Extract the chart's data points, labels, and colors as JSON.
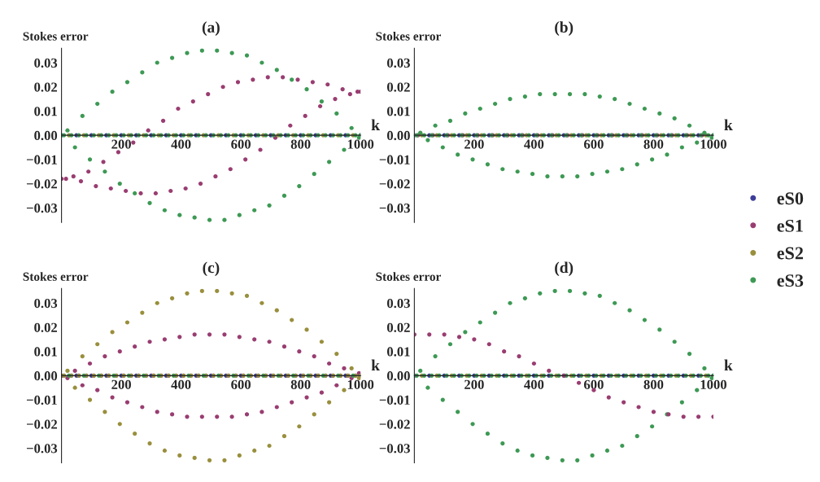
{
  "chart_data": [
    {
      "type": "scatter",
      "title": "(a)",
      "xlabel": "k",
      "ylabel": "Stokes error",
      "xlim": [
        0,
        1000
      ],
      "ylim": [
        -0.036,
        0.036
      ],
      "xticks": [
        200,
        400,
        600,
        800,
        1000
      ],
      "yticks": [
        {
          "value": -0.03,
          "label": "−0.03"
        },
        {
          "value": -0.02,
          "label": "−0.02"
        },
        {
          "value": -0.01,
          "label": "−0.01"
        },
        {
          "value": 0,
          "label": "0.00"
        },
        0.01,
        0.02,
        0.03
      ],
      "marker": "circle",
      "legend": "right",
      "series": [
        {
          "name": "eS0",
          "color": "#3d3d99",
          "x": [
            0,
            50,
            100,
            150,
            200,
            250,
            300,
            350,
            400,
            450,
            500,
            550,
            600,
            650,
            700,
            750,
            800,
            850,
            900,
            950,
            1000
          ],
          "values": [
            0,
            0,
            0,
            0,
            0,
            0,
            0,
            0,
            0,
            0,
            0,
            0,
            0,
            0,
            0,
            0,
            0,
            0,
            0,
            0,
            0
          ]
        },
        {
          "name": "eS1",
          "color": "#993d71",
          "x": [
            0,
            15,
            40,
            65,
            90,
            115,
            140,
            165,
            190,
            215,
            240,
            265,
            290,
            315,
            340,
            365,
            390,
            415,
            440,
            465,
            490,
            515,
            540,
            565,
            590,
            615,
            640,
            665,
            690,
            715,
            740,
            765,
            790,
            815,
            840,
            865,
            890,
            915,
            940,
            965,
            990,
            1000
          ],
          "values": [
            -0.018,
            -0.018,
            -0.017,
            -0.019,
            -0.015,
            -0.021,
            -0.011,
            -0.022,
            -0.007,
            -0.023,
            -0.003,
            -0.024,
            0.002,
            -0.024,
            0.006,
            -0.023,
            0.011,
            -0.022,
            0.014,
            -0.02,
            0.017,
            -0.017,
            0.02,
            -0.014,
            0.022,
            -0.01,
            0.023,
            -0.006,
            0.024,
            -0.001,
            0.024,
            0.004,
            0.023,
            0.008,
            0.022,
            0.012,
            0.021,
            0.015,
            0.019,
            0.017,
            0.018,
            0.018
          ]
        },
        {
          "name": "eS2",
          "color": "#998f3d",
          "x": [
            25,
            75,
            125,
            175,
            225,
            275,
            325,
            375,
            425,
            475,
            525,
            575,
            625,
            675,
            725,
            775,
            825,
            875,
            925,
            975
          ],
          "values": [
            0,
            0,
            0,
            0,
            0,
            0,
            0,
            0,
            0,
            0,
            0,
            0,
            0,
            0,
            0,
            0,
            0,
            0,
            0,
            0
          ]
        },
        {
          "name": "eS3",
          "color": "#3d9954",
          "x": [
            8,
            20,
            33,
            45,
            58,
            70,
            83,
            95,
            108,
            120,
            133,
            145,
            158,
            170,
            183,
            195,
            208,
            220,
            233,
            245,
            258,
            270,
            283,
            295,
            308,
            320,
            333,
            345,
            358,
            370,
            383,
            395,
            408,
            420,
            433,
            445,
            458,
            470,
            483,
            495,
            508,
            520,
            533,
            545,
            558,
            570,
            583,
            595,
            608,
            620,
            633,
            645,
            658,
            670,
            683,
            695,
            708,
            720,
            733,
            745,
            758,
            770,
            783,
            795,
            808,
            820,
            833,
            845,
            858,
            870,
            883,
            895,
            908,
            920,
            933,
            945,
            958,
            970,
            983,
            995,
            1000
          ],
          "values": [
            0,
            0.002,
            0,
            -0.005,
            0,
            0.008,
            0,
            -0.01,
            0,
            0.013,
            0,
            -0.015,
            0,
            0.018,
            0,
            -0.02,
            0,
            0.022,
            0,
            -0.024,
            0,
            0.026,
            0,
            -0.028,
            0,
            0.03,
            0,
            -0.031,
            0,
            0.032,
            0,
            -0.033,
            0,
            0.034,
            0,
            -0.034,
            0,
            0.035,
            0,
            -0.035,
            0,
            0.035,
            0,
            -0.035,
            0,
            0.034,
            0,
            -0.033,
            0,
            0.033,
            0,
            -0.031,
            0,
            0.03,
            0,
            -0.029,
            0,
            0.027,
            0,
            -0.025,
            0,
            0.023,
            0,
            -0.021,
            0,
            0.019,
            0,
            -0.016,
            0,
            0.014,
            0,
            -0.011,
            0,
            0.009,
            0,
            -0.006,
            0,
            0.003,
            0,
            -0.001,
            0
          ]
        }
      ]
    },
    {
      "type": "scatter",
      "title": "(b)",
      "xlabel": "k",
      "ylabel": "Stokes error",
      "xlim": [
        0,
        1000
      ],
      "ylim": [
        -0.036,
        0.036
      ],
      "xticks": [
        200,
        400,
        600,
        800,
        1000
      ],
      "yticks": [
        {
          "value": -0.03,
          "label": "−0.03"
        },
        {
          "value": -0.02,
          "label": "−0.02"
        },
        {
          "value": -0.01,
          "label": "−0.01"
        },
        {
          "value": 0,
          "label": "0.00"
        },
        0.01,
        0.02,
        0.03
      ],
      "marker": "circle",
      "series": [
        {
          "color": "#3d3d99",
          "x": [
            0,
            50,
            100,
            150,
            200,
            250,
            300,
            350,
            400,
            450,
            500,
            550,
            600,
            650,
            700,
            750,
            800,
            850,
            900,
            950,
            1000
          ],
          "values": [
            0,
            0,
            0,
            0,
            0,
            0,
            0,
            0,
            0,
            0,
            0,
            0,
            0,
            0,
            0,
            0,
            0,
            0,
            0,
            0,
            0
          ]
        },
        {
          "color": "#993d71",
          "x": [
            12,
            62,
            112,
            162,
            212,
            262,
            312,
            362,
            412,
            462,
            512,
            562,
            612,
            662,
            712,
            762,
            812,
            862,
            912,
            962
          ],
          "values": [
            0,
            0,
            0,
            0,
            0,
            0,
            0,
            0,
            0,
            0,
            0,
            0,
            0,
            0,
            0,
            0,
            0,
            0,
            0,
            0
          ]
        },
        {
          "color": "#998f3d",
          "x": [
            25,
            75,
            125,
            175,
            225,
            275,
            325,
            375,
            425,
            475,
            525,
            575,
            625,
            675,
            725,
            775,
            825,
            875,
            925,
            975
          ],
          "values": [
            0,
            0,
            0,
            0,
            0,
            0,
            0,
            0,
            0,
            0,
            0,
            0,
            0,
            0,
            0,
            0,
            0,
            0,
            0,
            0
          ]
        },
        {
          "color": "#3d9954",
          "x": [
            8,
            20,
            33,
            45,
            58,
            70,
            83,
            95,
            108,
            120,
            133,
            145,
            158,
            170,
            183,
            195,
            208,
            220,
            233,
            245,
            258,
            270,
            283,
            295,
            308,
            320,
            333,
            345,
            358,
            370,
            383,
            395,
            408,
            420,
            433,
            445,
            458,
            470,
            483,
            495,
            508,
            520,
            533,
            545,
            558,
            570,
            583,
            595,
            608,
            620,
            633,
            645,
            658,
            670,
            683,
            695,
            708,
            720,
            733,
            745,
            758,
            770,
            783,
            795,
            808,
            820,
            833,
            845,
            858,
            870,
            883,
            895,
            908,
            920,
            933,
            945,
            958,
            970,
            983,
            995,
            1000
          ],
          "values": [
            0,
            0.001,
            0,
            -0.002,
            0,
            0.004,
            0,
            -0.005,
            0,
            0.006,
            0,
            -0.008,
            0,
            0.009,
            0,
            -0.01,
            0,
            0.011,
            0,
            -0.012,
            0,
            0.013,
            0,
            -0.014,
            0,
            0.015,
            0,
            -0.015,
            0,
            0.016,
            0,
            -0.016,
            0,
            0.017,
            0,
            -0.017,
            0,
            0.017,
            0,
            -0.017,
            0,
            0.017,
            0,
            -0.017,
            0,
            0.017,
            0,
            -0.016,
            0,
            0.016,
            0,
            -0.015,
            0,
            0.015,
            0,
            -0.014,
            0,
            0.013,
            0,
            -0.012,
            0,
            0.011,
            0,
            -0.01,
            0,
            0.009,
            0,
            -0.008,
            0,
            0.007,
            0,
            -0.005,
            0,
            0.004,
            0,
            -0.003,
            0,
            0.001,
            0,
            -0.001,
            0
          ]
        }
      ]
    },
    {
      "type": "scatter",
      "title": "(c)",
      "xlabel": "k",
      "ylabel": "Stokes error",
      "xlim": [
        0,
        1000
      ],
      "ylim": [
        -0.036,
        0.036
      ],
      "xticks": [
        200,
        400,
        600,
        800,
        1000
      ],
      "yticks": [
        {
          "value": -0.03,
          "label": "−0.03"
        },
        {
          "value": -0.02,
          "label": "−0.02"
        },
        {
          "value": -0.01,
          "label": "−0.01"
        },
        {
          "value": 0,
          "label": "0.00"
        },
        0.01,
        0.02,
        0.03
      ],
      "marker": "circle",
      "series": [
        {
          "color": "#3d3d99",
          "x": [
            0,
            50,
            100,
            150,
            200,
            250,
            300,
            350,
            400,
            450,
            500,
            550,
            600,
            650,
            700,
            750,
            800,
            850,
            900,
            950,
            1000
          ],
          "values": [
            0,
            0,
            0,
            0,
            0,
            0,
            0,
            0,
            0,
            0,
            0,
            0,
            0,
            0,
            0,
            0,
            0,
            0,
            0,
            0,
            0
          ]
        },
        {
          "color": "#993d71",
          "x": [
            8,
            20,
            33,
            45,
            58,
            70,
            83,
            95,
            108,
            120,
            133,
            145,
            158,
            170,
            183,
            195,
            208,
            220,
            233,
            245,
            258,
            270,
            283,
            295,
            308,
            320,
            333,
            345,
            358,
            370,
            383,
            395,
            408,
            420,
            433,
            445,
            458,
            470,
            483,
            495,
            508,
            520,
            533,
            545,
            558,
            570,
            583,
            595,
            608,
            620,
            633,
            645,
            658,
            670,
            683,
            695,
            708,
            720,
            733,
            745,
            758,
            770,
            783,
            795,
            808,
            820,
            833,
            845,
            858,
            870,
            883,
            895,
            908,
            920,
            933,
            945,
            958,
            970,
            983,
            995
          ],
          "values": [
            0,
            -0.001,
            0,
            0.002,
            0,
            -0.004,
            0,
            0.005,
            0,
            -0.006,
            0,
            0.008,
            0,
            -0.009,
            0,
            0.01,
            0,
            -0.011,
            0,
            0.012,
            0,
            -0.013,
            0,
            0.014,
            0,
            -0.015,
            0,
            0.015,
            0,
            -0.016,
            0,
            0.016,
            0,
            -0.017,
            0,
            0.017,
            0,
            -0.017,
            0,
            0.017,
            0,
            -0.017,
            0,
            0.017,
            0,
            -0.017,
            0,
            0.016,
            0,
            -0.016,
            0,
            0.015,
            0,
            -0.015,
            0,
            0.014,
            0,
            -0.013,
            0,
            0.012,
            0,
            -0.011,
            0,
            0.01,
            0,
            -0.009,
            0,
            0.008,
            0,
            -0.007,
            0,
            0.005,
            0,
            -0.004,
            0,
            0.003,
            0,
            -0.001,
            0,
            0.001
          ]
        },
        {
          "color": "#998f3d",
          "x": [
            8,
            20,
            33,
            45,
            58,
            70,
            83,
            95,
            108,
            120,
            133,
            145,
            158,
            170,
            183,
            195,
            208,
            220,
            233,
            245,
            258,
            270,
            283,
            295,
            308,
            320,
            333,
            345,
            358,
            370,
            383,
            395,
            408,
            420,
            433,
            445,
            458,
            470,
            483,
            495,
            508,
            520,
            533,
            545,
            558,
            570,
            583,
            595,
            608,
            620,
            633,
            645,
            658,
            670,
            683,
            695,
            708,
            720,
            733,
            745,
            758,
            770,
            783,
            795,
            808,
            820,
            833,
            845,
            858,
            870,
            883,
            895,
            908,
            920,
            933,
            945,
            958,
            970,
            983,
            995,
            1000
          ],
          "values": [
            0,
            0.002,
            0,
            -0.005,
            0,
            0.008,
            0,
            -0.01,
            0,
            0.013,
            0,
            -0.015,
            0,
            0.018,
            0,
            -0.02,
            0,
            0.022,
            0,
            -0.024,
            0,
            0.026,
            0,
            -0.028,
            0,
            0.03,
            0,
            -0.031,
            0,
            0.032,
            0,
            -0.033,
            0,
            0.034,
            0,
            -0.034,
            0,
            0.035,
            0,
            -0.035,
            0,
            0.035,
            0,
            -0.035,
            0,
            0.034,
            0,
            -0.033,
            0,
            0.033,
            0,
            -0.031,
            0,
            0.03,
            0,
            -0.029,
            0,
            0.027,
            0,
            -0.025,
            0,
            0.023,
            0,
            -0.021,
            0,
            0.019,
            0,
            -0.016,
            0,
            0.014,
            0,
            -0.011,
            0,
            0.009,
            0,
            -0.006,
            0,
            0.003,
            0,
            -0.001,
            0
          ]
        },
        {
          "color": "#3d9954",
          "x": [
            25,
            75,
            125,
            175,
            225,
            275,
            325,
            375,
            425,
            475,
            525,
            575,
            625,
            675,
            725,
            775,
            825,
            875,
            925,
            975
          ],
          "values": [
            0,
            0,
            0,
            0,
            0,
            0,
            0,
            0,
            0,
            0,
            0,
            0,
            0,
            0,
            0,
            0,
            0,
            0,
            0,
            0
          ]
        }
      ]
    },
    {
      "type": "scatter",
      "title": "(d)",
      "xlabel": "k",
      "ylabel": "Stokes error",
      "xlim": [
        0,
        1000
      ],
      "ylim": [
        -0.036,
        0.036
      ],
      "xticks": [
        200,
        400,
        600,
        800,
        1000
      ],
      "yticks": [
        {
          "value": -0.03,
          "label": "−0.03"
        },
        {
          "value": -0.02,
          "label": "−0.02"
        },
        {
          "value": -0.01,
          "label": "−0.01"
        },
        {
          "value": 0,
          "label": "0.00"
        },
        0.01,
        0.02,
        0.03
      ],
      "marker": "circle",
      "series": [
        {
          "color": "#3d3d99",
          "x": [
            0,
            50,
            100,
            150,
            200,
            250,
            300,
            350,
            400,
            450,
            500,
            550,
            600,
            650,
            700,
            750,
            800,
            850,
            900,
            950,
            1000
          ],
          "values": [
            0,
            0,
            0,
            0,
            0,
            0,
            0,
            0,
            0,
            0,
            0,
            0,
            0,
            0,
            0,
            0,
            0,
            0,
            0,
            0,
            0
          ]
        },
        {
          "color": "#998f3d",
          "x": [
            25,
            75,
            125,
            175,
            225,
            275,
            325,
            375,
            425,
            475,
            525,
            575,
            625,
            675,
            725,
            775,
            825,
            875,
            925,
            975
          ],
          "values": [
            0,
            0,
            0,
            0,
            0,
            0,
            0,
            0,
            0,
            0,
            0,
            0,
            0,
            0,
            0,
            0,
            0,
            0,
            0,
            0
          ]
        },
        {
          "color": "#3d9954",
          "x": [
            8,
            20,
            33,
            45,
            58,
            70,
            83,
            95,
            108,
            120,
            133,
            145,
            158,
            170,
            183,
            195,
            208,
            220,
            233,
            245,
            258,
            270,
            283,
            295,
            308,
            320,
            333,
            345,
            358,
            370,
            383,
            395,
            408,
            420,
            433,
            445,
            458,
            470,
            483,
            495,
            508,
            520,
            533,
            545,
            558,
            570,
            583,
            595,
            608,
            620,
            633,
            645,
            658,
            670,
            683,
            695,
            708,
            720,
            733,
            745,
            758,
            770,
            783,
            795,
            808,
            820,
            833,
            845,
            858,
            870,
            883,
            895,
            908,
            920,
            933,
            945,
            958,
            970,
            983,
            995,
            1000
          ],
          "values": [
            0,
            0.002,
            0,
            -0.005,
            0,
            0.008,
            0,
            -0.01,
            0,
            0.013,
            0,
            -0.015,
            0,
            0.018,
            0,
            -0.02,
            0,
            0.022,
            0,
            -0.024,
            0,
            0.026,
            0,
            -0.028,
            0,
            0.03,
            0,
            -0.031,
            0,
            0.032,
            0,
            -0.033,
            0,
            0.034,
            0,
            -0.034,
            0,
            0.035,
            0,
            -0.035,
            0,
            0.035,
            0,
            -0.035,
            0,
            0.034,
            0,
            -0.033,
            0,
            0.033,
            0,
            -0.031,
            0,
            0.03,
            0,
            -0.029,
            0,
            0.027,
            0,
            -0.025,
            0,
            0.023,
            0,
            -0.021,
            0,
            0.019,
            0,
            -0.016,
            0,
            0.014,
            0,
            -0.011,
            0,
            0.009,
            0,
            -0.006,
            0,
            0.003,
            0,
            -0.001,
            0
          ]
        },
        {
          "color": "#993d71",
          "x": [
            0,
            50,
            100,
            150,
            200,
            250,
            300,
            350,
            400,
            450,
            500,
            550,
            600,
            650,
            700,
            750,
            800,
            850,
            900,
            950,
            1000
          ],
          "values": [
            0.017,
            0.017,
            0.017,
            0.016,
            0.015,
            0.013,
            0.01,
            0.008,
            0.005,
            0.002,
            0.0,
            -0.003,
            -0.006,
            -0.009,
            -0.011,
            -0.013,
            -0.015,
            -0.016,
            -0.017,
            -0.017,
            -0.017
          ]
        }
      ]
    }
  ]
}
